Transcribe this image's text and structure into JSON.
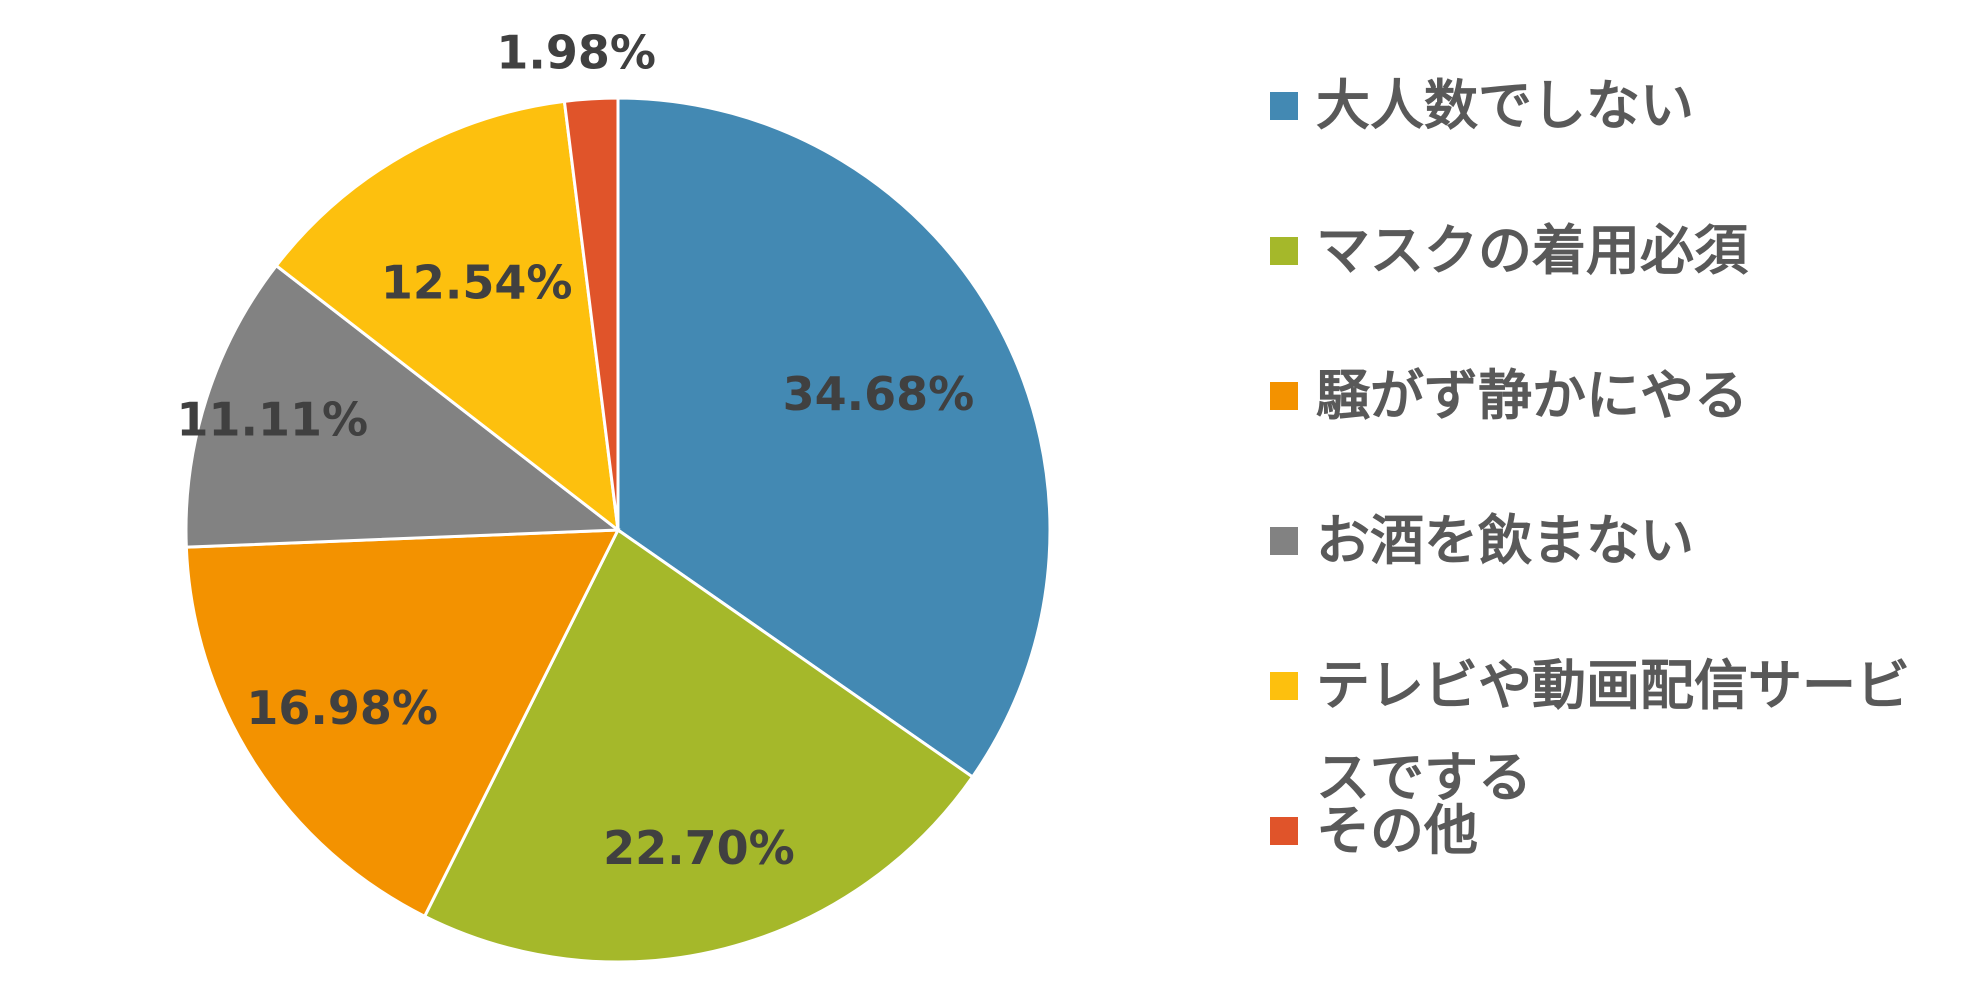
{
  "chart_data": {
    "type": "pie",
    "title": "",
    "slices": [
      {
        "label": "大人数でしない",
        "value": 34.68,
        "value_label": "34.68%",
        "color": "#4389B3"
      },
      {
        "label": "マスクの着用必須",
        "value": 22.7,
        "value_label": "22.70%",
        "color": "#A5B82A"
      },
      {
        "label": "騒がず静かにやる",
        "value": 16.98,
        "value_label": "16.98%",
        "color": "#F39200"
      },
      {
        "label": "お酒を飲まない",
        "value": 11.11,
        "value_label": "11.11%",
        "color": "#828282"
      },
      {
        "label": "テレビや動画配信サービスでする",
        "value": 12.54,
        "value_label": "12.54%",
        "color": "#FDC00E"
      },
      {
        "label": "その他",
        "value": 1.98,
        "value_label": "1.98%",
        "color": "#E0542A"
      }
    ],
    "start_angle_deg": 0,
    "direction": "clockwise",
    "legend_position": "right"
  }
}
